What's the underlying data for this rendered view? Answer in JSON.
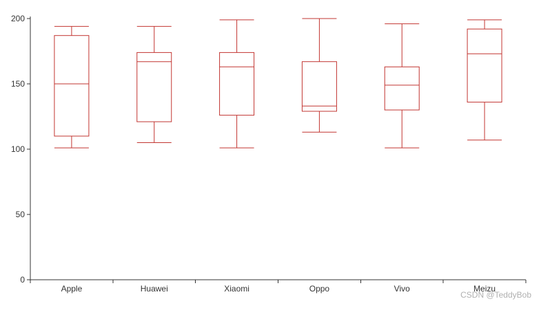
{
  "chart_data": {
    "type": "boxplot",
    "categories": [
      "Apple",
      "Huawei",
      "Xiaomi",
      "Oppo",
      "Vivo",
      "Meizu"
    ],
    "series": [
      {
        "boxes": [
          {
            "min": 101,
            "q1": 110,
            "median": 150,
            "q3": 187,
            "max": 194
          },
          {
            "min": 105,
            "q1": 121,
            "median": 167,
            "q3": 174,
            "max": 194
          },
          {
            "min": 101,
            "q1": 126,
            "median": 163,
            "q3": 174,
            "max": 199
          },
          {
            "min": 113,
            "q1": 129,
            "median": 133,
            "q3": 167,
            "max": 200
          },
          {
            "min": 101,
            "q1": 130,
            "median": 149,
            "q3": 163,
            "max": 196
          },
          {
            "min": 107,
            "q1": 136,
            "median": 173,
            "q3": 192,
            "max": 199
          }
        ]
      }
    ],
    "ylim": [
      0,
      200
    ],
    "yticks": [
      0,
      50,
      100,
      150,
      200
    ],
    "color": "#c23531",
    "grid": false,
    "legend": "none"
  },
  "watermark": "CSDN @TeddyBob"
}
